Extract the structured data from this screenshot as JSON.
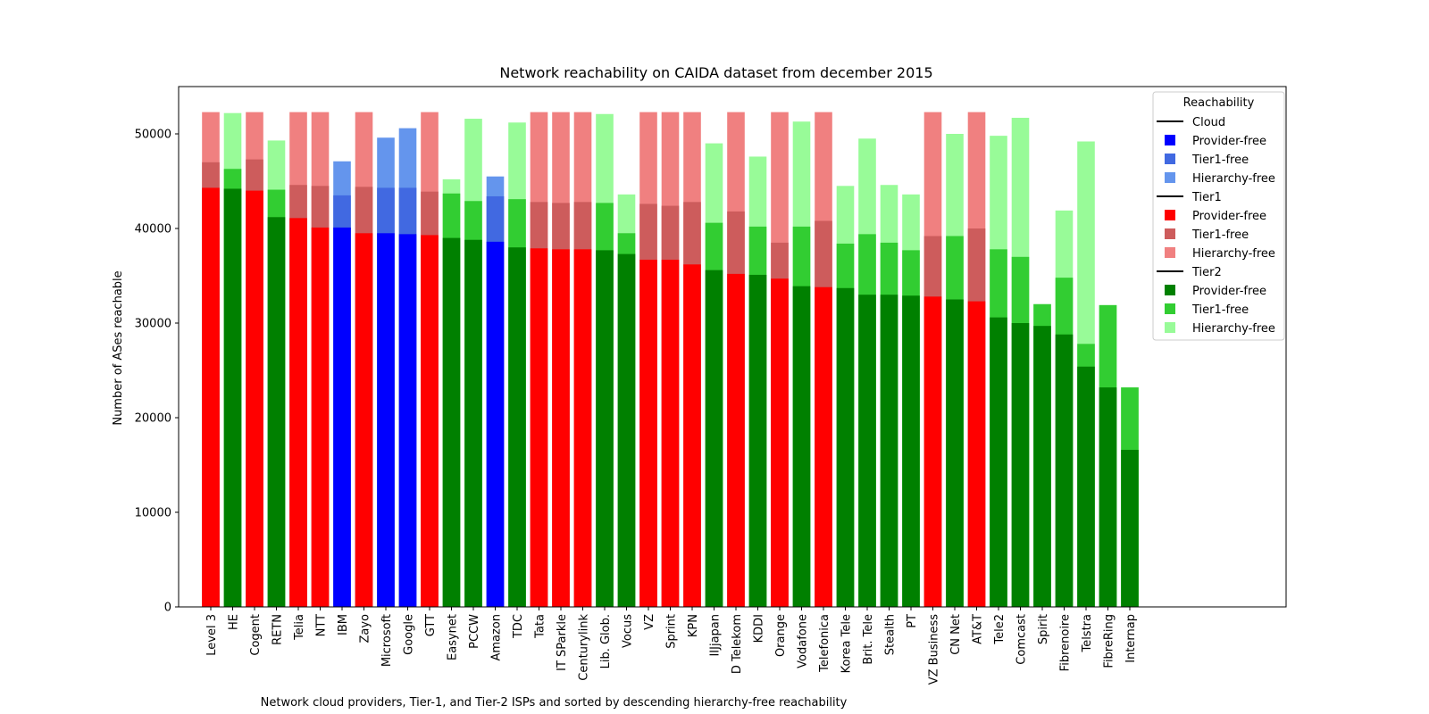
{
  "chart_data": {
    "type": "bar",
    "stacked": "overlay",
    "title": "Network reachability on CAIDA dataset from december 2015",
    "xlabel": "Network cloud providers, Tier-1, and Tier-2 ISPs and sorted by descending hierarchy-free reachability",
    "ylabel": "Number of ASes reachable",
    "ylim": [
      0,
      55000
    ],
    "yticks": [
      0,
      10000,
      20000,
      30000,
      40000,
      50000
    ],
    "grid": false,
    "legend": {
      "title": "Reachability",
      "placement": "top-right",
      "groups": [
        {
          "name": "Cloud",
          "entries": [
            {
              "label": "Provider-free",
              "color": "#0000ff"
            },
            {
              "label": "Tier1-free",
              "color": "#4169e1"
            },
            {
              "label": "Hierarchy-free",
              "color": "#6495ed"
            }
          ]
        },
        {
          "name": "Tier1",
          "entries": [
            {
              "label": "Provider-free",
              "color": "#ff0000"
            },
            {
              "label": "Tier1-free",
              "color": "#cd5c5c"
            },
            {
              "label": "Hierarchy-free",
              "color": "#f08080"
            }
          ]
        },
        {
          "name": "Tier2",
          "entries": [
            {
              "label": "Provider-free",
              "color": "#008000"
            },
            {
              "label": "Tier1-free",
              "color": "#32cd32"
            },
            {
              "label": "Hierarchy-free",
              "color": "#98fb98"
            }
          ]
        }
      ]
    },
    "categories": [
      "Level 3",
      "HE",
      "Cogent",
      "RETN",
      "Telia",
      "NTT",
      "IBM",
      "Zayo",
      "Microsoft",
      "Google",
      "GTT",
      "Easynet",
      "PCCW",
      "Amazon",
      "TDC",
      "Tata",
      "IT SParkle",
      "Centurylink",
      "Lib. Glob.",
      "Vocus",
      "VZ",
      "Sprint",
      "KPN",
      "IIJjapan",
      "D Telekom",
      "KDDI",
      "Orange",
      "Vodafone",
      "Telefonica",
      "Korea Tele",
      "Brit. Tele",
      "Stealth",
      "PT",
      "VZ Business",
      "CN Net",
      "AT&T",
      "Tele2",
      "Comcast",
      "Spirit",
      "Fibrenoire",
      "Telstra",
      "FibreRing",
      "Internap"
    ],
    "groups": [
      "Tier1",
      "Tier2",
      "Tier1",
      "Tier2",
      "Tier1",
      "Tier1",
      "Cloud",
      "Tier1",
      "Cloud",
      "Cloud",
      "Tier1",
      "Tier2",
      "Tier2",
      "Cloud",
      "Tier2",
      "Tier1",
      "Tier1",
      "Tier1",
      "Tier2",
      "Tier2",
      "Tier1",
      "Tier1",
      "Tier1",
      "Tier2",
      "Tier1",
      "Tier2",
      "Tier1",
      "Tier2",
      "Tier1",
      "Tier2",
      "Tier2",
      "Tier2",
      "Tier2",
      "Tier1",
      "Tier2",
      "Tier1",
      "Tier2",
      "Tier2",
      "Tier2",
      "Tier2",
      "Tier2",
      "Tier2",
      "Tier2"
    ],
    "series": [
      {
        "name": "Provider-free",
        "values": [
          44300,
          44200,
          44000,
          41200,
          41100,
          40100,
          40100,
          39500,
          39500,
          39400,
          39300,
          39000,
          38800,
          38600,
          38000,
          37900,
          37800,
          37800,
          37700,
          37300,
          36700,
          36700,
          36200,
          35600,
          35200,
          35100,
          34700,
          33900,
          33800,
          33700,
          33000,
          33000,
          32900,
          32800,
          32500,
          32300,
          30600,
          30000,
          29700,
          28800,
          25400,
          23200,
          16600
        ]
      },
      {
        "name": "Tier1-free",
        "values": [
          47000,
          46300,
          47300,
          44100,
          44600,
          44500,
          43500,
          44400,
          44300,
          44300,
          43900,
          43700,
          42900,
          43400,
          43100,
          42800,
          42700,
          42800,
          42700,
          39500,
          42600,
          42400,
          42800,
          40600,
          41800,
          40200,
          38500,
          40200,
          40800,
          38400,
          39400,
          38500,
          37700,
          39200,
          39200,
          40000,
          37800,
          37000,
          32000,
          34800,
          27800,
          31900,
          23200
        ]
      },
      {
        "name": "Hierarchy-free",
        "values": [
          52300,
          52200,
          52300,
          49300,
          52300,
          52300,
          47100,
          52300,
          49600,
          50600,
          52300,
          45200,
          51600,
          45500,
          51200,
          52300,
          52300,
          52300,
          52100,
          43600,
          52300,
          52300,
          52300,
          49000,
          52300,
          47600,
          52300,
          51300,
          52300,
          44500,
          49500,
          44600,
          43600,
          52300,
          50000,
          52300,
          49800,
          51700,
          32000,
          41900,
          49200,
          31900,
          23200
        ]
      }
    ]
  }
}
